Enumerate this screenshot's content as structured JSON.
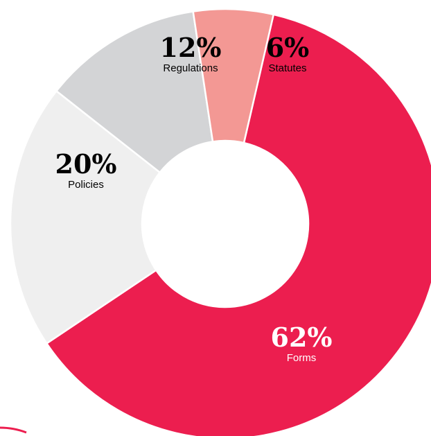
{
  "chart_data": {
    "type": "pie",
    "title": "",
    "subtitle": "",
    "slices": [
      {
        "label": "Forms",
        "value": 62,
        "display": "62%",
        "color": "#EC1E4F",
        "text_color": "#FFFFFF"
      },
      {
        "label": "Policies",
        "value": 20,
        "display": "20%",
        "color": "#EFEFEF",
        "text_color": "#000000"
      },
      {
        "label": "Regulations",
        "value": 12,
        "display": "12%",
        "color": "#D3D4D6",
        "text_color": "#000000"
      },
      {
        "label": "Statutes",
        "value": 6,
        "display": "6%",
        "color": "#F39894",
        "text_color": "#000000"
      }
    ],
    "legend": "none",
    "donut": true
  }
}
